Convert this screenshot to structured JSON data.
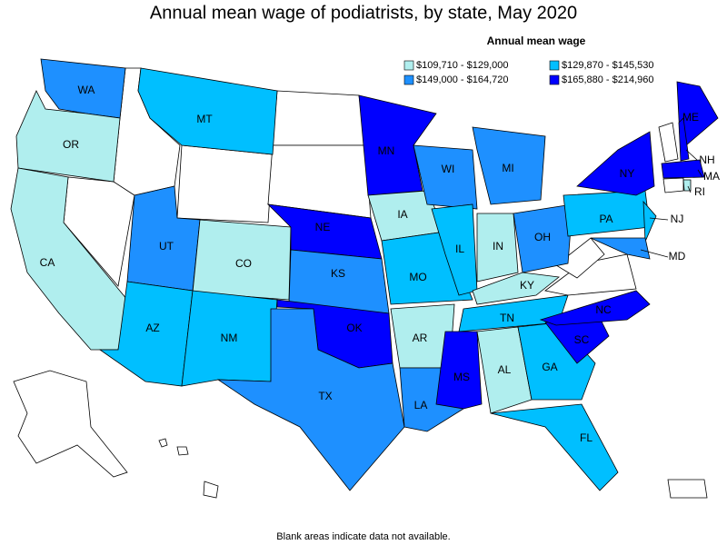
{
  "title": "Annual mean wage of podiatrists, by state, May 2020",
  "legend": {
    "title": "Annual mean wage",
    "items": [
      {
        "label": "$109,710 - $129,000",
        "color": "#b0eeee"
      },
      {
        "label": "$129,870 - $145,530",
        "color": "#00bfff"
      },
      {
        "label": "$149,000 - $164,720",
        "color": "#1e90ff"
      },
      {
        "label": "$165,880 - $214,960",
        "color": "#0000ff"
      }
    ]
  },
  "states": [
    {
      "label": "WA",
      "color": "#1e90ff"
    },
    {
      "label": "OR",
      "color": "#b0eeee"
    },
    {
      "label": "CA",
      "color": "#b0eeee"
    },
    {
      "label": "MT",
      "color": "#00bfff"
    },
    {
      "label": "UT",
      "color": "#1e90ff"
    },
    {
      "label": "CO",
      "color": "#b0eeee"
    },
    {
      "label": "AZ",
      "color": "#00bfff"
    },
    {
      "label": "NM",
      "color": "#00bfff"
    },
    {
      "label": "NE",
      "color": "#0000ff"
    },
    {
      "label": "KS",
      "color": "#1e90ff"
    },
    {
      "label": "OK",
      "color": "#0000ff"
    },
    {
      "label": "TX",
      "color": "#1e90ff"
    },
    {
      "label": "MN",
      "color": "#0000ff"
    },
    {
      "label": "IA",
      "color": "#b0eeee"
    },
    {
      "label": "MO",
      "color": "#00bfff"
    },
    {
      "label": "AR",
      "color": "#b0eeee"
    },
    {
      "label": "LA",
      "color": "#1e90ff"
    },
    {
      "label": "WI",
      "color": "#1e90ff"
    },
    {
      "label": "IL",
      "color": "#00bfff"
    },
    {
      "label": "MI",
      "color": "#1e90ff"
    },
    {
      "label": "IN",
      "color": "#b0eeee"
    },
    {
      "label": "OH",
      "color": "#1e90ff"
    },
    {
      "label": "KY",
      "color": "#b0eeee"
    },
    {
      "label": "TN",
      "color": "#00bfff"
    },
    {
      "label": "MS",
      "color": "#0000ff"
    },
    {
      "label": "AL",
      "color": "#b0eeee"
    },
    {
      "label": "GA",
      "color": "#00bfff"
    },
    {
      "label": "FL",
      "color": "#00bfff"
    },
    {
      "label": "SC",
      "color": "#0000ff"
    },
    {
      "label": "NC",
      "color": "#0000ff"
    },
    {
      "label": "PA",
      "color": "#00bfff"
    },
    {
      "label": "NY",
      "color": "#0000ff"
    },
    {
      "label": "NJ",
      "color": "#00bfff"
    },
    {
      "label": "MD",
      "color": "#1e90ff"
    },
    {
      "label": "ME",
      "color": "#0000ff"
    },
    {
      "label": "NH",
      "color": "#0000ff"
    },
    {
      "label": "MA",
      "color": "#0000ff"
    },
    {
      "label": "RI",
      "color": "#b0eeee"
    }
  ],
  "footnote": "Blank areas indicate data not available."
}
